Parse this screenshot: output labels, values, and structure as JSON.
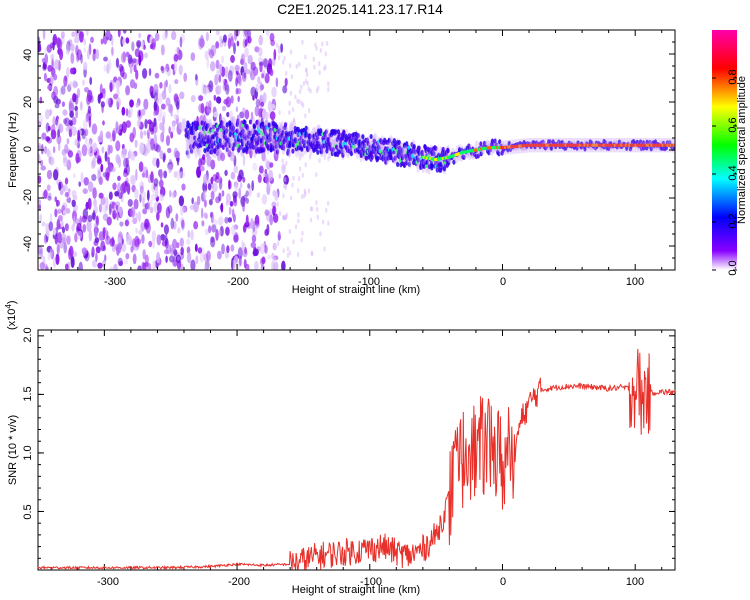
{
  "title": "C2E1.2025.141.23.17.R14",
  "chart_data": [
    {
      "type": "heatmap",
      "title": "C2E1.2025.141.23.17.R14",
      "xlabel": "Height of straight line (km)",
      "ylabel": "Frequency (Hz)",
      "xlim": [
        -350,
        130
      ],
      "ylim": [
        -50,
        50
      ],
      "xticks": [
        -300,
        -200,
        -100,
        0,
        100
      ],
      "xtick_labels": [
        "-300",
        "-200",
        "-100",
        "0",
        "100"
      ],
      "yticks": [
        -40,
        -20,
        0,
        20,
        40
      ],
      "ytick_labels": [
        "-40",
        "-20",
        "0",
        "20",
        "40"
      ],
      "colorbar": {
        "label": "Normalized spectral amplitude",
        "range": [
          0,
          1
        ],
        "ticks": [
          0.0,
          0.2,
          0.4,
          0.6,
          0.8
        ],
        "tick_labels": [
          "0.0",
          "0.2",
          "0.4",
          "0.6",
          "0.8"
        ],
        "colors": [
          "#ffffff",
          "#8800ff",
          "#0000ff",
          "#00ffff",
          "#00ff00",
          "#ffff00",
          "#ff0000",
          "#ff00aa"
        ]
      },
      "ridge": {
        "x": [
          -235,
          -200,
          -170,
          -140,
          -110,
          -80,
          -60,
          -50,
          -40,
          -30,
          -20,
          -10,
          0,
          20,
          50,
          80,
          100,
          130
        ],
        "frequency": [
          5,
          6,
          5,
          4,
          2,
          -1,
          -3,
          -4,
          -3,
          -1,
          0,
          1,
          1,
          2,
          2,
          2,
          2,
          2
        ]
      }
    },
    {
      "type": "line",
      "xlabel": "Height of straight line (km)",
      "ylabel": "SNR (10 * v/v)",
      "scale_label": "(x10",
      "scale_exponent": "4",
      "scale_close": ")",
      "xlim": [
        -350,
        130
      ],
      "ylim": [
        0,
        2.05
      ],
      "xticks": [
        -300,
        -200,
        -100,
        0,
        100
      ],
      "xtick_labels": [
        "-300",
        "-200",
        "-100",
        "0",
        "100"
      ],
      "yticks": [
        0.5,
        1.0,
        1.5,
        2.0
      ],
      "ytick_labels": [
        "0.5",
        "1.0",
        "1.5",
        "2.0"
      ],
      "series": [
        {
          "name": "SNR",
          "color": "#e8302a",
          "x": [
            -350,
            -300,
            -250,
            -220,
            -200,
            -180,
            -160,
            -150,
            -140,
            -120,
            -100,
            -90,
            -80,
            -70,
            -60,
            -50,
            -45,
            -40,
            -35,
            -30,
            -25,
            -20,
            -15,
            -10,
            -5,
            0,
            5,
            10,
            15,
            20,
            25,
            30,
            40,
            50,
            60,
            70,
            80,
            90,
            95,
            100,
            103,
            105,
            108,
            110,
            115,
            120,
            130
          ],
          "y": [
            0.02,
            0.02,
            0.02,
            0.03,
            0.05,
            0.04,
            0.05,
            0.08,
            0.12,
            0.15,
            0.18,
            0.2,
            0.15,
            0.12,
            0.18,
            0.3,
            0.45,
            0.6,
            0.8,
            0.95,
            1.05,
            1.0,
            1.05,
            1.1,
            1.0,
            0.9,
            0.95,
            1.1,
            1.3,
            1.42,
            1.5,
            1.54,
            1.56,
            1.57,
            1.57,
            1.56,
            1.55,
            1.56,
            1.55,
            1.55,
            1.6,
            1.4,
            1.55,
            1.5,
            1.52,
            1.52,
            1.52
          ]
        }
      ]
    }
  ]
}
